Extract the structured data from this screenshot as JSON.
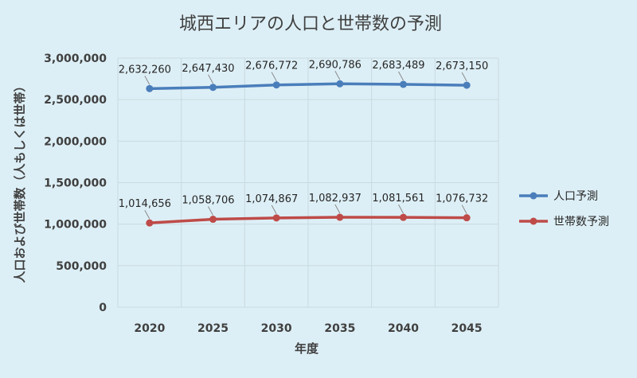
{
  "chart_data": {
    "type": "line",
    "title": "城西エリアの人口と世帯数の予測",
    "xlabel": "年度",
    "ylabel": "人口および世帯数（人もしくは世帯）",
    "categories": [
      "2020",
      "2025",
      "2030",
      "2035",
      "2040",
      "2045"
    ],
    "ylim": [
      0,
      3000000
    ],
    "yticks": [
      0,
      500000,
      1000000,
      1500000,
      2000000,
      2500000,
      3000000
    ],
    "ytick_labels": [
      "0",
      "500,000",
      "1,000,000",
      "1,500,000",
      "2,000,000",
      "2,500,000",
      "3,000,000"
    ],
    "grid": true,
    "legend_position": "right",
    "series": [
      {
        "name": "人口予測",
        "color": "#4a7ebb",
        "values": [
          2632260,
          2647430,
          2676772,
          2690786,
          2683489,
          2673150
        ],
        "labels": [
          "2,632,260",
          "2,647,430",
          "2,676,772",
          "2,690,786",
          "2,683,489",
          "2,673,150"
        ]
      },
      {
        "name": "世帯数予測",
        "color": "#be4b48",
        "values": [
          1014656,
          1058706,
          1074867,
          1082937,
          1081561,
          1076732
        ],
        "labels": [
          "1,014,656",
          "1,058,706",
          "1,074,867",
          "1,082,937",
          "1,081,561",
          "1,076,732"
        ]
      }
    ]
  }
}
